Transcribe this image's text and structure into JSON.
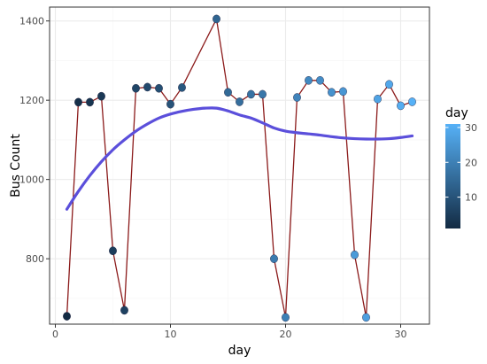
{
  "chart_data": {
    "type": "line",
    "xlabel": "day",
    "ylabel": "Bus Count",
    "xlim": [
      -0.5,
      32.5
    ],
    "ylim": [
      635,
      1435
    ],
    "x_ticks": [
      0,
      10,
      20,
      30
    ],
    "y_ticks": [
      800,
      1000,
      1200,
      1400
    ],
    "grid": true,
    "series": [
      {
        "kind": "points-and-line",
        "line_color": "#8b1a1a",
        "x": [
          1,
          2,
          3,
          4,
          5,
          6,
          7,
          8,
          9,
          10,
          11,
          12,
          13,
          14,
          15,
          16,
          17,
          18,
          19,
          20,
          21,
          22,
          23,
          24,
          25,
          26,
          27,
          28,
          29,
          30,
          31
        ],
        "y": [
          655,
          1195,
          1195,
          1210,
          820,
          670,
          1230,
          1233,
          1230,
          1190,
          1232,
          null,
          null,
          1405,
          1220,
          1196,
          1215,
          1215,
          800,
          652,
          1207,
          1250,
          1250,
          1220,
          1222,
          810,
          652,
          1203,
          1240,
          1186,
          1196
        ]
      },
      {
        "kind": "smooth",
        "line_color": "#5b4fdb",
        "x": [
          1,
          2,
          3,
          4,
          5,
          6,
          7,
          8,
          9,
          10,
          11,
          12,
          13,
          14,
          15,
          16,
          17,
          18,
          19,
          20,
          21,
          22,
          23,
          24,
          25,
          26,
          27,
          28,
          29,
          30,
          31
        ],
        "y": [
          925,
          970,
          1010,
          1045,
          1075,
          1100,
          1122,
          1140,
          1155,
          1165,
          1172,
          1177,
          1180,
          1180,
          1173,
          1163,
          1155,
          1143,
          1130,
          1122,
          1118,
          1115,
          1112,
          1108,
          1105,
          1103,
          1102,
          1102,
          1103,
          1106,
          1110
        ]
      }
    ],
    "legend": {
      "title": "day",
      "placement": "right",
      "type": "colorbar",
      "ticks": [
        10,
        20,
        30
      ],
      "range": [
        1,
        31
      ],
      "low_color": "#132b43",
      "high_color": "#56b1f7"
    }
  }
}
